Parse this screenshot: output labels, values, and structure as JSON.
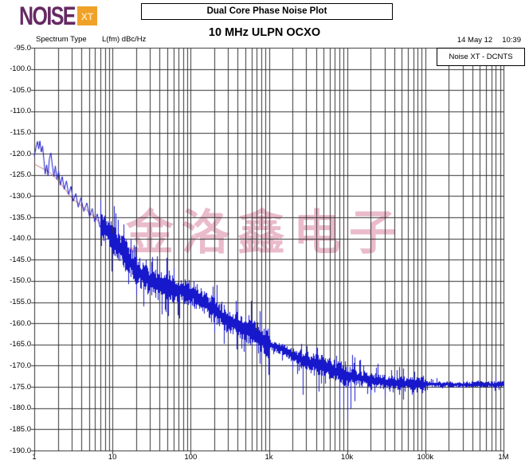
{
  "header": {
    "logo": {
      "noise": "NOISE",
      "xt": "XT",
      "noise_color": "#662a62",
      "xt_bg": "#f0a128"
    },
    "title_box": "Dual Core Phase Noise Plot",
    "chart_title": "10 MHz ULPN OCXO",
    "spectrum_type_label": "Spectrum Type",
    "unit_label": "L(fm) dBc/Hz",
    "date": "14 May 12",
    "time": "10:39",
    "instrument_badge": "Noise XT - DCNTS"
  },
  "watermark": {
    "text": "金洛鑫电子",
    "color": "#e29fb6"
  },
  "chart_data": {
    "type": "line",
    "title": "10 MHz ULPN OCXO",
    "ylabel": "L(fm) dBc/Hz",
    "x_scale": "log",
    "x_range_hz": [
      1,
      1000000
    ],
    "x_ticks": [
      "1",
      "10",
      "100",
      "1k",
      "10k",
      "100k",
      "1M"
    ],
    "y_range": [
      -190,
      -95
    ],
    "y_ticks": [
      -95,
      -100,
      -105,
      -110,
      -115,
      -120,
      -125,
      -130,
      -135,
      -140,
      -145,
      -150,
      -155,
      -160,
      -165,
      -170,
      -175,
      -180,
      -185,
      -190
    ],
    "grid": "log minor verticals per decade, 5 dB horizontals",
    "legend": "none",
    "trace_color": "#1717cb",
    "smooth_color": "#c25a5a",
    "grid_color": "#333333",
    "seed": 9,
    "mean_curve": [
      [
        1,
        -122.5
      ],
      [
        1.5,
        -124.2
      ],
      [
        2,
        -126.3
      ],
      [
        3,
        -130.5
      ],
      [
        5,
        -133.8
      ],
      [
        7,
        -136.5
      ],
      [
        10,
        -140
      ],
      [
        15,
        -144
      ],
      [
        20,
        -147.6
      ],
      [
        30,
        -150
      ],
      [
        50,
        -151.5
      ],
      [
        70,
        -152.3
      ],
      [
        100,
        -153
      ],
      [
        150,
        -155
      ],
      [
        200,
        -157
      ],
      [
        300,
        -159.3
      ],
      [
        500,
        -161.5
      ],
      [
        700,
        -163.2
      ],
      [
        1000,
        -165
      ],
      [
        1500,
        -166.2
      ],
      [
        2000,
        -167.6
      ],
      [
        3000,
        -169
      ],
      [
        5000,
        -170.2
      ],
      [
        7000,
        -171.3
      ],
      [
        10000,
        -172.3
      ],
      [
        15000,
        -173
      ],
      [
        20000,
        -173.4
      ],
      [
        30000,
        -173.8
      ],
      [
        50000,
        -174.1
      ],
      [
        100000,
        -174.3
      ],
      [
        300000,
        -174.5
      ],
      [
        1000000,
        -174.4
      ]
    ],
    "noise_half_db": [
      [
        7,
        2.6
      ],
      [
        10,
        3.0
      ],
      [
        20,
        3.0
      ],
      [
        50,
        2.6
      ],
      [
        100,
        2.4
      ],
      [
        200,
        2.4
      ],
      [
        400,
        2.6
      ],
      [
        700,
        3.0
      ],
      [
        980,
        3.2
      ],
      [
        1020,
        1.0
      ],
      [
        1500,
        1.2
      ],
      [
        2500,
        1.8
      ],
      [
        4000,
        2.0
      ],
      [
        7000,
        2.2
      ],
      [
        9000,
        2.4
      ],
      [
        12000,
        1.6
      ],
      [
        20000,
        1.5
      ],
      [
        50000,
        1.4
      ],
      [
        99000,
        1.4
      ],
      [
        101000,
        0.55
      ],
      [
        300000,
        0.6
      ],
      [
        1000000,
        0.7
      ]
    ],
    "spurs_up": [
      [
        40,
        -147.5
      ],
      [
        50,
        -147.8
      ],
      [
        60,
        -146.9
      ],
      [
        95,
        -149.8
      ],
      [
        120,
        -150.8
      ],
      [
        250,
        -154.8
      ],
      [
        400,
        -156.8
      ],
      [
        550,
        -158.0
      ]
    ],
    "spurs_down": [
      [
        2700,
        -176.8
      ],
      [
        4300,
        -176.2
      ],
      [
        8000,
        -180.5
      ],
      [
        9000,
        -179
      ],
      [
        10000,
        -183
      ],
      [
        11000,
        -180
      ],
      [
        12500,
        -178.3
      ],
      [
        20000,
        -176.8
      ],
      [
        30000,
        -177.2
      ]
    ],
    "start_zigzag": [
      [
        1.0,
        -120.6
      ],
      [
        1.05,
        -118.6
      ],
      [
        1.1,
        -117.1
      ],
      [
        1.14,
        -118.9
      ],
      [
        1.18,
        -117.0
      ],
      [
        1.23,
        -119.6
      ],
      [
        1.28,
        -118.2
      ],
      [
        1.33,
        -121.6
      ],
      [
        1.38,
        -124.8
      ],
      [
        1.44,
        -122.6
      ],
      [
        1.5,
        -125.2
      ],
      [
        1.56,
        -121.2
      ],
      [
        1.63,
        -119.8
      ],
      [
        1.7,
        -122.6
      ],
      [
        1.78,
        -125.4
      ],
      [
        1.86,
        -122.9
      ],
      [
        1.95,
        -126.1
      ],
      [
        2.05,
        -124.1
      ],
      [
        2.15,
        -127.4
      ],
      [
        2.28,
        -125.4
      ],
      [
        2.42,
        -128.4
      ],
      [
        2.58,
        -126.4
      ],
      [
        2.75,
        -129.6
      ],
      [
        2.95,
        -127.7
      ],
      [
        3.15,
        -131.2
      ],
      [
        3.4,
        -129.4
      ],
      [
        3.65,
        -132.6
      ],
      [
        3.95,
        -130.4
      ],
      [
        4.3,
        -133.6
      ],
      [
        4.7,
        -131.6
      ],
      [
        5.1,
        -134.9
      ],
      [
        5.5,
        -132.9
      ],
      [
        5.95,
        -136.1
      ],
      [
        6.4,
        -134.2
      ],
      [
        6.9,
        -137.3
      ],
      [
        7.5,
        -135.3
      ]
    ]
  }
}
